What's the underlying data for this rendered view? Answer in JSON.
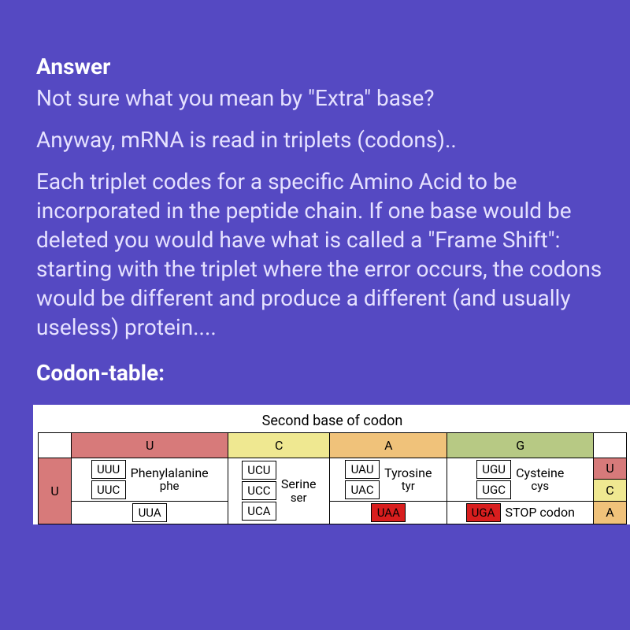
{
  "colors": {
    "page_bg": "#5549c2",
    "sidebar": "#332a8f",
    "text_body": "#e5e1ff",
    "text_heading": "#ffffff",
    "col_U": "#d77a7a",
    "col_C": "#efe891",
    "col_A": "#f0c27a",
    "col_G": "#b7c984",
    "stop": "#d81e1e",
    "cell_bg": "#ffffff",
    "border": "#000000"
  },
  "answer": {
    "heading": "Answer",
    "p1": "Not sure what you mean by \"Extra\" base?",
    "p2": "Anyway, mRNA is read in triplets (codons)..",
    "p3": "Each triplet codes for a specific Amino Acid to be incorporated in the peptide chain. If one base would be deleted you would have what is called a \"Frame Shift\": starting with the triplet where the error occurs, the codons would be different and produce a different (and usually useless) protein...."
  },
  "codon_heading": "Codon-table:",
  "table": {
    "title": "Second base of codon",
    "second_base_headers": [
      "U",
      "C",
      "A",
      "G"
    ],
    "first_base_label_visible": "U",
    "third_base_labels_visible": [
      "U",
      "C"
    ],
    "rowU": {
      "U": {
        "codons": [
          "UUU",
          "UUC",
          "UUA"
        ],
        "aa_full": "Phenylalanine",
        "aa_abbr": "phe"
      },
      "C": {
        "codons": [
          "UCU",
          "UCC",
          "UCA"
        ],
        "aa_full": "Serine",
        "aa_abbr": "ser"
      },
      "A": {
        "codons_top": [
          "UAU",
          "UAC"
        ],
        "aa_top_full": "Tyrosine",
        "aa_top_abbr": "tyr",
        "codon_stop": "UAA"
      },
      "G": {
        "codons_top": [
          "UGU",
          "UGC"
        ],
        "aa_top_full": "Cysteine",
        "aa_top_abbr": "cys",
        "codon_stop": "UGA",
        "stop_label_partial": "STOP codon"
      }
    },
    "third_A_partial": "A"
  }
}
